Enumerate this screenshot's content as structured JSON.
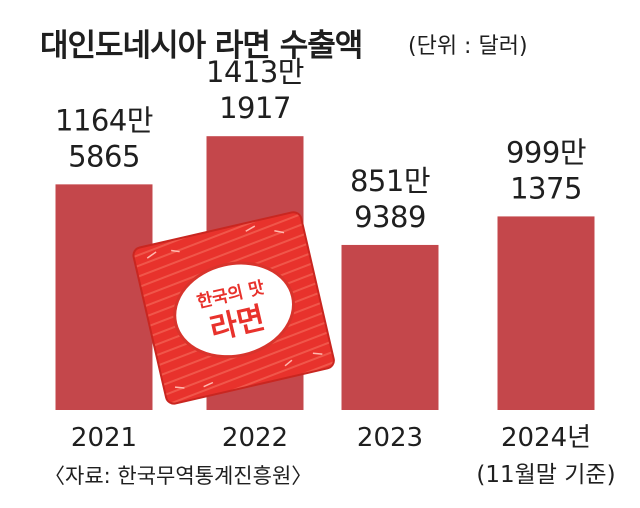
{
  "title": "대인도네시아 라면 수출액",
  "unit": "(단위 : 달러)",
  "source": "〈자료: 한국무역통계진흥원〉",
  "package": {
    "line1": "한국의 맛",
    "line2": "라면"
  },
  "colors": {
    "bar": "#c4474b",
    "package": "#e8322c",
    "text": "#1f1f1f"
  },
  "chart_data": {
    "type": "bar",
    "title": "대인도네시아 라면 수출액",
    "categories": [
      "2021",
      "2022",
      "2023",
      "2024년"
    ],
    "category_notes": [
      "",
      "",
      "",
      "(11월말 기준)"
    ],
    "values": [
      11645865,
      14131917,
      8519389,
      9991375
    ],
    "value_labels": [
      [
        "1164만",
        "5865"
      ],
      [
        "1413만",
        "1917"
      ],
      [
        "851만",
        "9389"
      ],
      [
        "999만",
        "1375"
      ]
    ],
    "ylabel": "",
    "unit": "달러",
    "ylim": [
      0,
      16000000
    ],
    "grid": false,
    "legend": "none"
  }
}
